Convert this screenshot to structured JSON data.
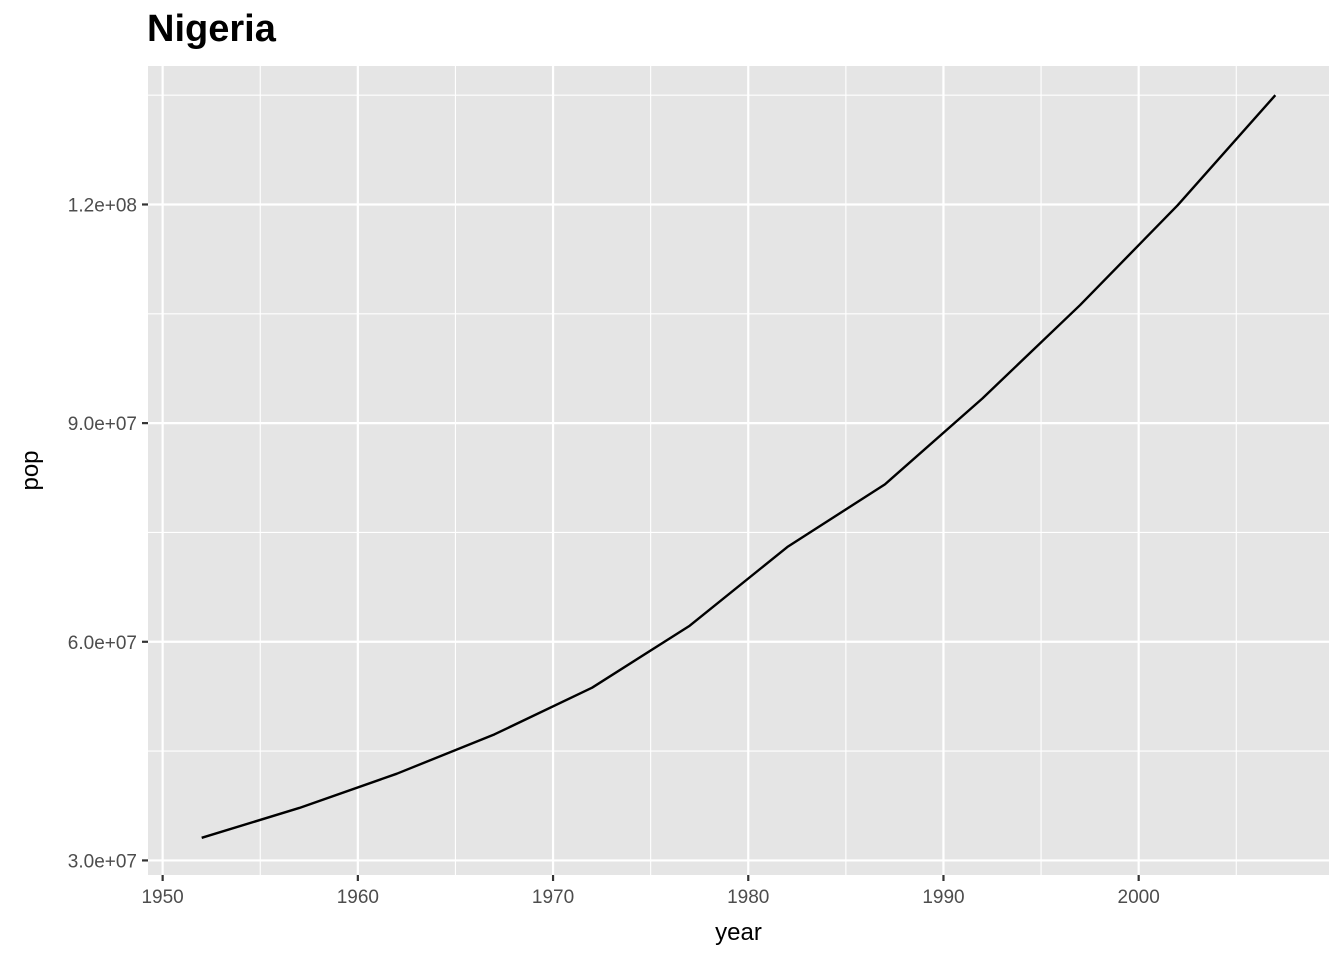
{
  "chart_data": {
    "type": "line",
    "title": "Nigeria",
    "xlabel": "year",
    "ylabel": "pop",
    "xlim": [
      1949.25,
      2009.75
    ],
    "ylim": [
      28000000,
      139000000
    ],
    "x_ticks": [
      1950,
      1960,
      1970,
      1980,
      1990,
      2000
    ],
    "x_tick_labels": [
      "1950",
      "1960",
      "1970",
      "1980",
      "1990",
      "2000"
    ],
    "y_ticks": [
      30000000,
      60000000,
      90000000,
      120000000
    ],
    "y_tick_labels": [
      "3.0e+07",
      "6.0e+07",
      "9.0e+07",
      "1.2e+08"
    ],
    "grid": true,
    "panel_background": "#e5e5e5",
    "grid_color": "#ffffff",
    "line_color": "#000000",
    "series": [
      {
        "x": [
          1952,
          1957,
          1962,
          1967,
          1972,
          1977,
          1982,
          1987,
          1992,
          1997,
          2002,
          2007
        ],
        "y": [
          33100000,
          37200000,
          41900000,
          47300000,
          53700000,
          62200000,
          73000000,
          81600000,
          93400000,
          106200000,
          119900000,
          135000000
        ]
      }
    ]
  }
}
